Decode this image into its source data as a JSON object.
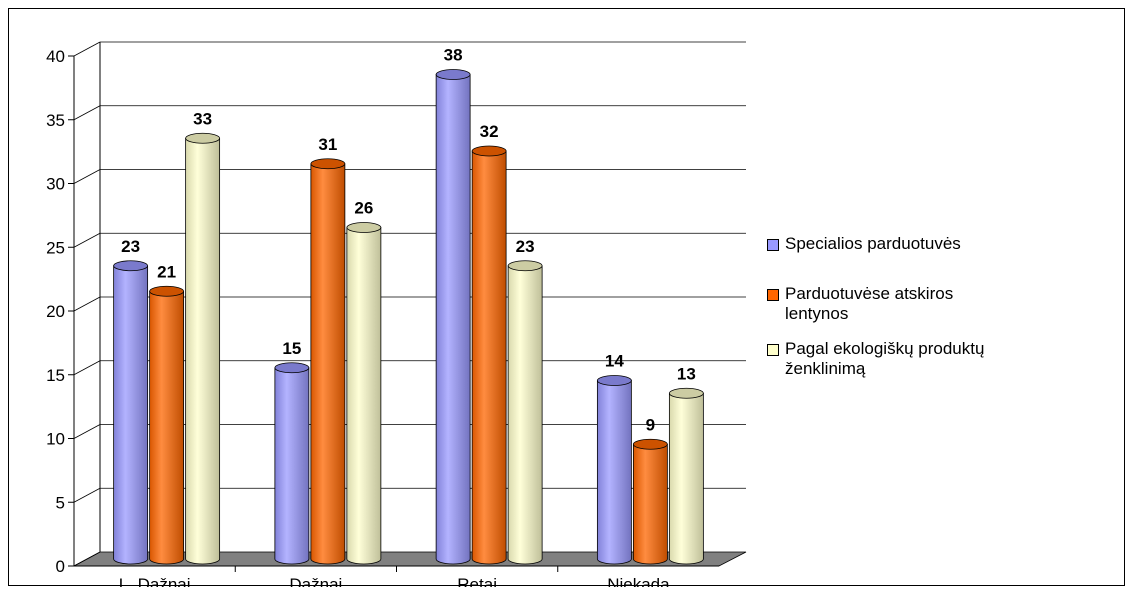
{
  "chart_data": {
    "type": "bar",
    "categories": [
      "L. Dažnai",
      "Dažnai",
      "Retai",
      "Niekada"
    ],
    "series": [
      {
        "name": "Specialios parduotuvės",
        "values": [
          23,
          15,
          38,
          14
        ],
        "color": "#9999ff"
      },
      {
        "name": "Parduotuvėse atskiros lentynos",
        "values": [
          21,
          31,
          32,
          9
        ],
        "color": "#ff6600"
      },
      {
        "name": "Pagal ekologiškų produktų ženklinimą",
        "values": [
          33,
          26,
          23,
          13
        ],
        "color": "#ffffcc"
      }
    ],
    "yticks": [
      "0",
      "5",
      "10",
      "15",
      "20",
      "25",
      "30",
      "35",
      "40"
    ],
    "ylim": [
      0,
      40
    ],
    "grid": true,
    "floor_color": "#808080",
    "legend_position": "right"
  },
  "legend": {
    "items": [
      {
        "label": "Specialios parduotuvės",
        "color": "#9999ff"
      },
      {
        "label": "Parduotuvėse atskiros\nlentynos",
        "color": "#ff6600"
      },
      {
        "label": "Pagal ekologiškų produktų\nženklinimą",
        "color": "#ffffcc"
      }
    ]
  }
}
